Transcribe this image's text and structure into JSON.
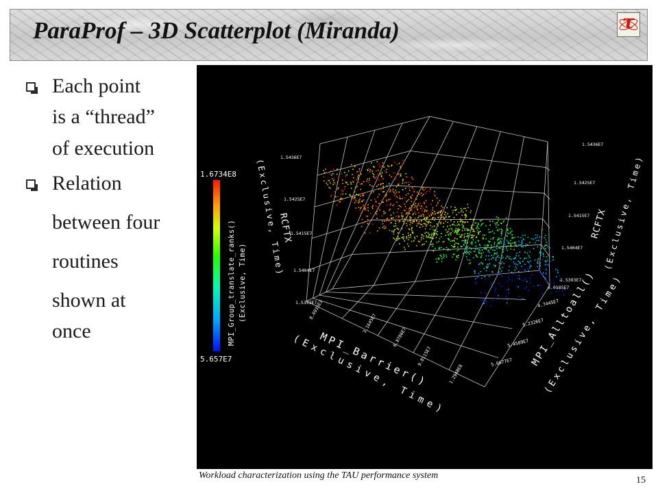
{
  "slide": {
    "title": "ParaProf – 3D Scatterplot (Miranda)",
    "logo_glyph": "τ",
    "footer": "Workload characterization using the TAU performance system",
    "page_number": "15"
  },
  "bullets": [
    {
      "lines": [
        "Each point",
        "is a “thread”",
        "of execution"
      ]
    },
    {
      "lines": [
        "Relation",
        "between four",
        "routines",
        "shown at",
        "once"
      ]
    }
  ],
  "plot": {
    "colorbar": {
      "max_label": "1.6734E8",
      "min_label": "5.657E7",
      "title": "MPI_Group_translate_ranks()",
      "subtitle": "(Exclusive, Time)"
    },
    "axes": {
      "rcftx_left": {
        "title": "RCFTX",
        "subtitle": "(Exclusive, Time)",
        "ticks": [
          "1.5436E7",
          "1.5425E7",
          "1.5415E7",
          "1.5404E7",
          "1.5393E7"
        ]
      },
      "rcftx_right": {
        "title": "RCFTX",
        "subtitle": "(Exclusive, Time)",
        "ticks": [
          "1.5436E7",
          "1.5425E7",
          "1.5415E7",
          "1.5404E7",
          "1.5393E7"
        ]
      },
      "barrier": {
        "title": "MPI_Barrier()",
        "subtitle": "(Exclusive, Time)",
        "ticks": [
          "8.6935E3",
          "3.1645E7",
          "6.8786E7",
          "9.8115E7",
          "1.2948E8"
        ]
      },
      "alltoall": {
        "title": "MPI_Alltoall()",
        "subtitle": "(Exclusive, Time)",
        "ticks": [
          "4.7445E7",
          "5.2326E7",
          "5.4509E7",
          "5.6677E7"
        ]
      },
      "alltoall_top_tick": "6.0185E7"
    },
    "colors": {
      "background": "#000000",
      "grid": "#e8e8e8",
      "scale": [
        "#0022ff",
        "#00b7ff",
        "#00ff44",
        "#c8ff00",
        "#ffaa00",
        "#ff1a00"
      ]
    }
  }
}
